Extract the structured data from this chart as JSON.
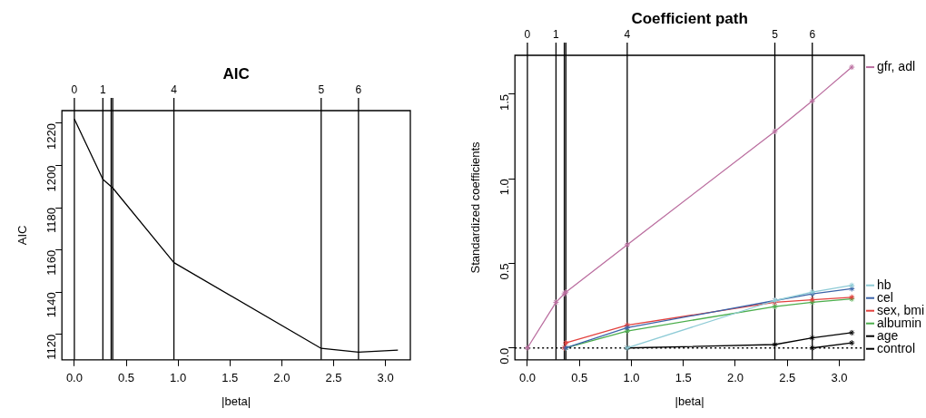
{
  "chart_data": [
    {
      "type": "line",
      "title": "AIC",
      "xlabel": "|beta|",
      "ylabel": "AIC",
      "x": [
        0,
        0.275,
        0.355,
        0.37,
        0.96,
        2.38,
        2.74,
        3.12
      ],
      "values": [
        1222,
        1193.5,
        1190,
        1189.4,
        1154,
        1113.4,
        1111.6,
        1112.6
      ],
      "color": "#000000",
      "xlim": [
        -0.12,
        3.24
      ],
      "xticks": [
        {
          "value": 0,
          "label": "0.0"
        },
        {
          "value": 0.5,
          "label": "0.5"
        },
        {
          "value": 1,
          "label": "1.0"
        },
        {
          "value": 1.5,
          "label": "1.5"
        },
        {
          "value": 2,
          "label": "2.0"
        },
        {
          "value": 2.5,
          "label": "2.5"
        },
        {
          "value": 3,
          "label": "3.0"
        }
      ],
      "ylim": [
        1108,
        1226
      ],
      "yticks": [
        1120,
        1140,
        1160,
        1180,
        1200,
        1220
      ],
      "annotations": [
        "0",
        "1",
        "4",
        "5",
        "6"
      ],
      "ref_lines": [
        {
          "axis": "x",
          "value": 0,
          "label": null
        },
        {
          "axis": "x",
          "value": 0.275,
          "label": null
        },
        {
          "axis": "x",
          "value": 0.96,
          "label": null
        },
        {
          "axis": "x",
          "value": 2.38,
          "label": null
        },
        {
          "axis": "x",
          "value": 2.74,
          "label": null
        },
        {
          "axis": "x",
          "value": 0.355,
          "label": null
        },
        {
          "axis": "x",
          "value": 0.37,
          "label": null
        }
      ],
      "marker": "none",
      "grid": false
    },
    {
      "type": "line",
      "title": "Coefficient path",
      "xlabel": "|beta|",
      "ylabel": "Standardized coefficients",
      "x": [
        0,
        0.275,
        0.355,
        0.37,
        0.96,
        2.38,
        2.74,
        3.12
      ],
      "series": [
        {
          "name": "gfr, adl",
          "color": "#bb6fa0",
          "values": [
            0,
            0.27,
            0.32,
            0.33,
            0.61,
            1.28,
            1.46,
            1.66
          ]
        },
        {
          "name": "hb",
          "color": "#8ecbd6",
          "values": [
            null,
            null,
            null,
            null,
            0,
            0.28,
            0.33,
            0.37
          ]
        },
        {
          "name": "cel",
          "color": "#3b63a8",
          "values": [
            null,
            null,
            null,
            0,
            0.12,
            0.28,
            0.32,
            0.35
          ]
        },
        {
          "name": "sex, bmi",
          "color": "#e3413e",
          "values": [
            null,
            null,
            0,
            0.03,
            0.135,
            0.27,
            0.285,
            0.3
          ]
        },
        {
          "name": "albumin",
          "color": "#4cae4c",
          "values": [
            null,
            null,
            null,
            0,
            0.1,
            0.245,
            0.27,
            0.29
          ]
        },
        {
          "name": "age",
          "color": "#000000",
          "values": [
            null,
            null,
            null,
            null,
            0,
            0.02,
            0.06,
            0.09
          ]
        },
        {
          "name": "control",
          "color": "#000000",
          "values": [
            null,
            null,
            null,
            null,
            null,
            null,
            0,
            0.03
          ]
        }
      ],
      "xlim": [
        -0.12,
        3.24
      ],
      "xticks": [
        {
          "value": 0,
          "label": "0.0"
        },
        {
          "value": 0.5,
          "label": "0.5"
        },
        {
          "value": 1,
          "label": "1.0"
        },
        {
          "value": 1.5,
          "label": "1.5"
        },
        {
          "value": 2,
          "label": "2.0"
        },
        {
          "value": 2.5,
          "label": "2.5"
        },
        {
          "value": 3,
          "label": "3.0"
        }
      ],
      "ylim": [
        -0.07,
        1.73
      ],
      "yticks": [
        {
          "value": 0,
          "label": "0.0"
        },
        {
          "value": 0.5,
          "label": "0.5"
        },
        {
          "value": 1,
          "label": "1.0"
        },
        {
          "value": 1.5,
          "label": "1.5"
        }
      ],
      "annotations": [
        "0",
        "1",
        "4",
        "5",
        "6"
      ],
      "ref_lines": [
        {
          "axis": "x",
          "value": 0,
          "label": null
        },
        {
          "axis": "x",
          "value": 0.275,
          "label": null
        },
        {
          "axis": "x",
          "value": 0.96,
          "label": null
        },
        {
          "axis": "x",
          "value": 2.38,
          "label": null
        },
        {
          "axis": "x",
          "value": 2.74,
          "label": null
        },
        {
          "axis": "x",
          "value": 0.355,
          "label": null
        },
        {
          "axis": "x",
          "value": 0.37,
          "label": null
        },
        {
          "axis": "y",
          "value": 0,
          "label": null,
          "line_style": "dotted"
        }
      ],
      "marker": "cross",
      "grid": false,
      "legend": "right"
    }
  ]
}
